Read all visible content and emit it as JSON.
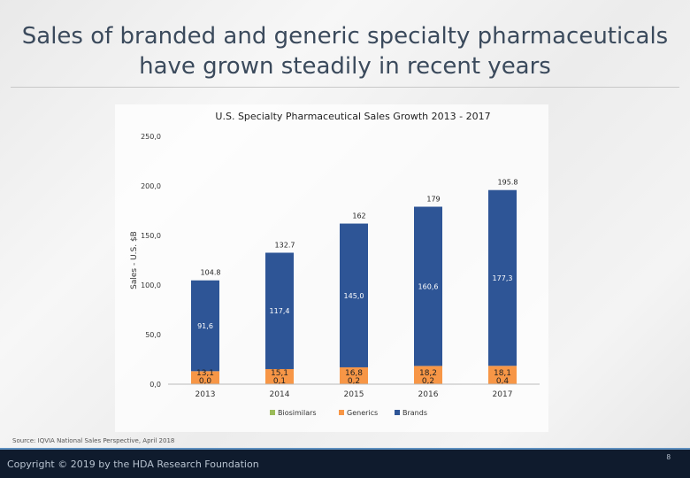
{
  "slide": {
    "title": "Sales of branded and generic specialty pharmaceuticals have grown steadily in recent years",
    "source": "Source: IQVIA National Sales Perspective, April 2018",
    "footer": "Copyright © 2019 by the HDA Research Foundation",
    "page_number": "8"
  },
  "chart_data": {
    "type": "bar",
    "stacked": true,
    "title": "U.S. Specialty Pharmaceutical Sales Growth 2013 - 2017",
    "ylabel": "Sales - U.S. $B",
    "xlabel": "",
    "categories": [
      "2013",
      "2014",
      "2015",
      "2016",
      "2017"
    ],
    "ylim": [
      0,
      250
    ],
    "yticks": [
      "0,0",
      "50,0",
      "100,0",
      "150,0",
      "200,0",
      "250,0"
    ],
    "legend_position": "bottom",
    "series": [
      {
        "name": "Biosimilars",
        "color": "#9bbb59",
        "values": [
          0.0,
          0.1,
          0.2,
          0.2,
          0.4
        ],
        "labels": [
          "0,0",
          "0,1",
          "0,2",
          "0,2",
          "0,4"
        ]
      },
      {
        "name": "Generics",
        "color": "#f79646",
        "values": [
          13.1,
          15.1,
          16.8,
          18.2,
          18.1
        ],
        "labels": [
          "13,1",
          "15,1",
          "16,8",
          "18,2",
          "18,1"
        ]
      },
      {
        "name": "Brands",
        "color": "#2e5596",
        "values": [
          91.6,
          117.4,
          145.0,
          160.6,
          177.3
        ],
        "labels": [
          "91,6",
          "117,4",
          "145,0",
          "160,6",
          "177,3"
        ]
      }
    ],
    "totals": [
      104.8,
      132.7,
      162,
      179,
      195.8
    ],
    "total_labels": [
      "104.8",
      "132.7",
      "162",
      "179",
      "195.8"
    ]
  }
}
